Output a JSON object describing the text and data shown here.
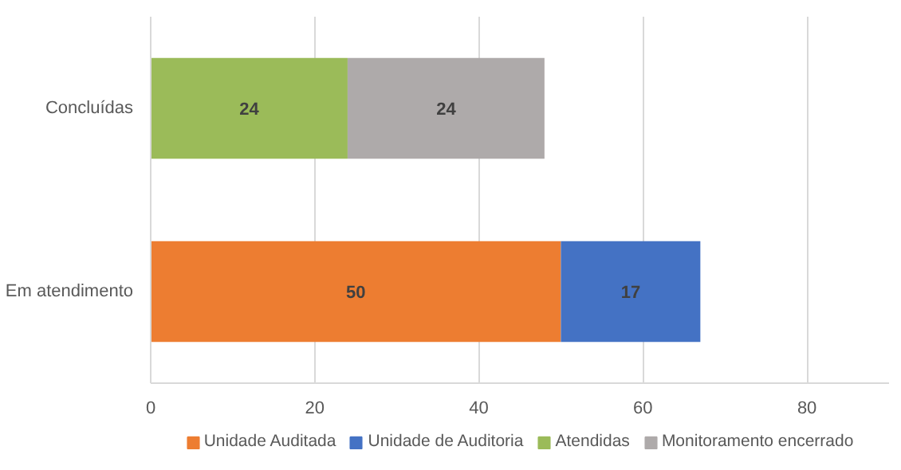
{
  "chart_data": {
    "type": "bar",
    "orientation": "horizontal",
    "stacked": true,
    "categories": [
      "Concluídas",
      "Em atendimento"
    ],
    "series": [
      {
        "name": "Unidade Auditada",
        "color": "#ed7d31",
        "values": [
          null,
          50
        ]
      },
      {
        "name": "Unidade de Auditoria",
        "color": "#4472c4",
        "values": [
          null,
          17
        ]
      },
      {
        "name": "Atendidas",
        "color": "#9bbb59",
        "values": [
          24,
          null
        ]
      },
      {
        "name": "Monitoramento encerrado",
        "color": "#aeaaaa",
        "values": [
          24,
          null
        ]
      }
    ],
    "xlim": [
      0,
      90
    ],
    "xticks": [
      0,
      20,
      40,
      60,
      80
    ],
    "grid": "x",
    "legend": "bottom",
    "data_labels": true
  }
}
